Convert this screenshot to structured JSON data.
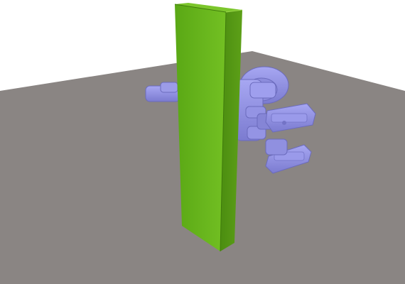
{
  "scene": {
    "background_color": "#ffffff",
    "floor_color": "#8a8583",
    "slab_color": "#66b31e",
    "slab_side_color": "#4f8f14",
    "slab_top_color": "#7cc62c",
    "robot_color": "#8f8fe0",
    "robot_shadow_color": "#6b6bbd"
  }
}
